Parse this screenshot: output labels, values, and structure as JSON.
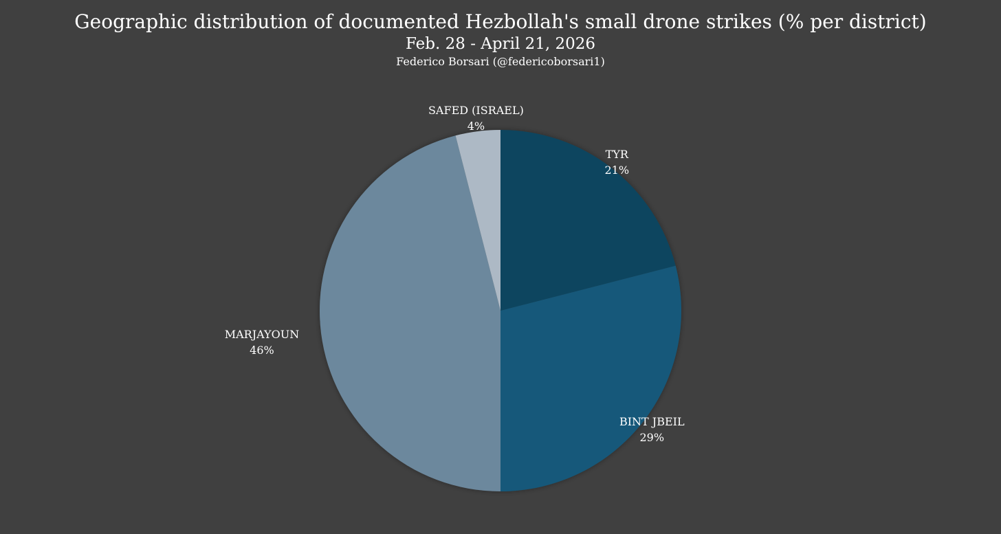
{
  "chart_data": {
    "type": "pie",
    "title": "Geographic distribution of documented Hezbollah's small drone strikes (% per district)",
    "subtitle": "Feb. 28 - April 21, 2026",
    "credit": "Federico Borsari (@federicoborsari1)",
    "slices": [
      {
        "label": "TYR",
        "value": 21,
        "value_label": "21%",
        "color": "#11455f"
      },
      {
        "label": "BINT JBEIL",
        "value": 29,
        "value_label": "29%",
        "color": "#14587a"
      },
      {
        "label": "MARJAYOUN",
        "value": 46,
        "value_label": "46%",
        "color": "#6c889d"
      },
      {
        "label": "SAFED (ISRAEL)",
        "value": 4,
        "value_label": "4%",
        "color": "#adb9c5"
      }
    ],
    "background_color": "#404040"
  }
}
